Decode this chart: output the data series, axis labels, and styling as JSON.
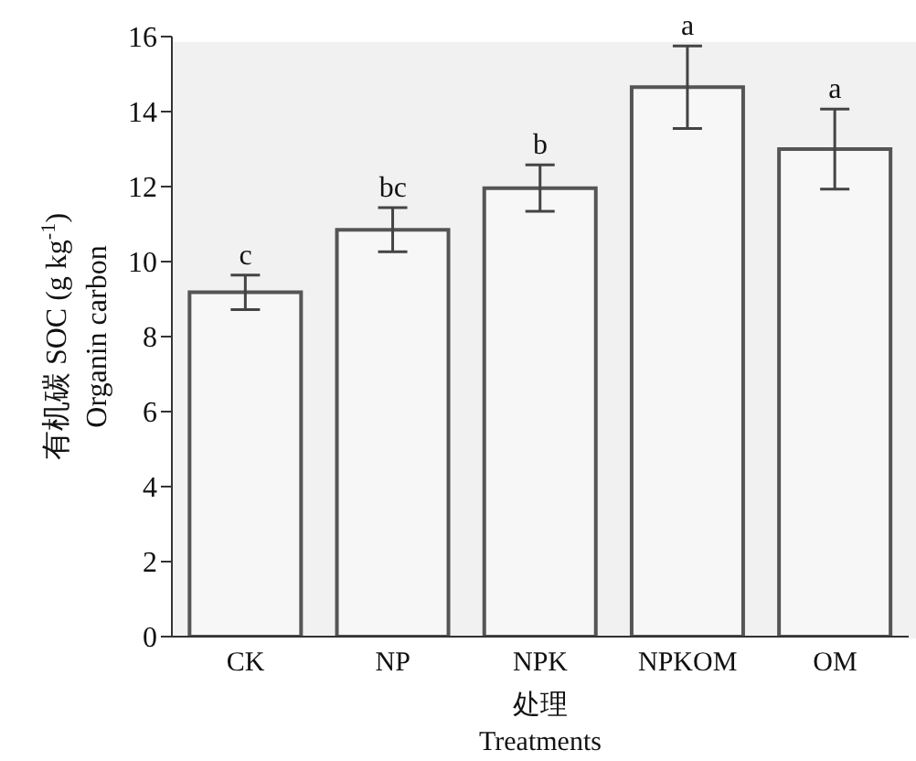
{
  "chart_data": {
    "type": "bar",
    "categories": [
      "CK",
      "NP",
      "NPK",
      "NPKOM",
      "OM"
    ],
    "values": [
      9.18,
      10.85,
      11.96,
      14.65,
      13.0
    ],
    "errors": [
      0.46,
      0.59,
      0.62,
      1.1,
      1.07
    ],
    "color": "#f7f7f7",
    "ylabel": "有机碳 SOC (g kg$^{-1}$)\nOrganin carbon",
    "xlabel": "处理\nTreatments",
    "ylim": [
      0,
      16
    ],
    "yticks": [
      0,
      2,
      4,
      6,
      8,
      10,
      12,
      14,
      16
    ],
    "grid": false,
    "legend": false,
    "annotations": [
      "c",
      "bc",
      "b",
      "a",
      "a"
    ]
  }
}
